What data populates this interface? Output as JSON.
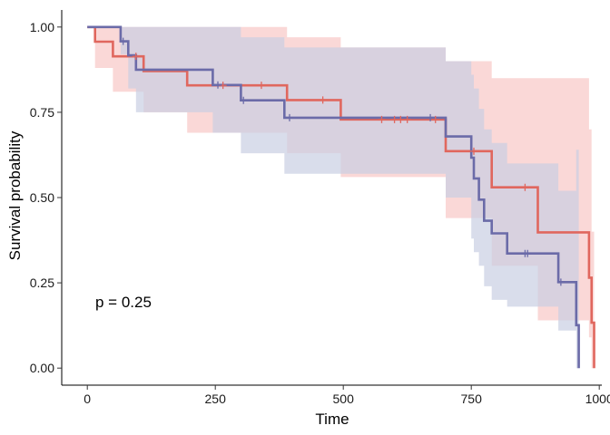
{
  "chart_data": {
    "type": "line",
    "subtype": "kaplan-meier-survival",
    "xlabel": "Time",
    "ylabel": "Survival probability",
    "xlim": [
      -50,
      1005
    ],
    "ylim": [
      -0.05,
      1.05
    ],
    "x_ticks": [
      0,
      250,
      500,
      750,
      1000
    ],
    "y_ticks": [
      0.0,
      0.25,
      0.5,
      0.75,
      1.0
    ],
    "x_tick_labels": [
      "0",
      "250",
      "500",
      "750",
      "1000"
    ],
    "y_tick_labels": [
      "0.00",
      "0.25",
      "0.50",
      "0.75",
      "1.00"
    ],
    "annotation": "p = 0.25",
    "grid": false,
    "legend": "none",
    "series": [
      {
        "color": "#E0675E",
        "ci_color": "#F8C8C6",
        "steps": [
          [
            0,
            1.0
          ],
          [
            15,
            0.957
          ],
          [
            50,
            0.914
          ],
          [
            90,
            0.914
          ],
          [
            110,
            0.871
          ],
          [
            195,
            0.829
          ],
          [
            390,
            0.786
          ],
          [
            495,
            0.729
          ],
          [
            700,
            0.636
          ],
          [
            790,
            0.53
          ],
          [
            880,
            0.398
          ],
          [
            980,
            0.265
          ],
          [
            985,
            0.133
          ],
          [
            990,
            0.0
          ]
        ],
        "ci_upper": [
          [
            0,
            1.0
          ],
          [
            15,
            1.0
          ],
          [
            50,
            1.0
          ],
          [
            90,
            1.0
          ],
          [
            110,
            1.0
          ],
          [
            195,
            1.0
          ],
          [
            390,
            0.97
          ],
          [
            495,
            0.94
          ],
          [
            700,
            0.9
          ],
          [
            790,
            0.85
          ],
          [
            880,
            0.85
          ],
          [
            980,
            0.7
          ],
          [
            985,
            0.4
          ],
          [
            990,
            0.4
          ]
        ],
        "ci_lower": [
          [
            0,
            1.0
          ],
          [
            15,
            0.88
          ],
          [
            50,
            0.81
          ],
          [
            90,
            0.81
          ],
          [
            110,
            0.75
          ],
          [
            195,
            0.69
          ],
          [
            390,
            0.63
          ],
          [
            495,
            0.56
          ],
          [
            700,
            0.44
          ],
          [
            790,
            0.3
          ],
          [
            880,
            0.14
          ],
          [
            980,
            0.09
          ],
          [
            985,
            0.0
          ],
          [
            990,
            0.0
          ]
        ],
        "censored": [
          [
            95,
            0.914
          ],
          [
            265,
            0.829
          ],
          [
            340,
            0.829
          ],
          [
            460,
            0.786
          ],
          [
            575,
            0.729
          ],
          [
            600,
            0.729
          ],
          [
            612,
            0.729
          ],
          [
            625,
            0.729
          ],
          [
            680,
            0.729
          ],
          [
            755,
            0.636
          ],
          [
            855,
            0.53
          ]
        ]
      },
      {
        "color": "#6B6BA8",
        "ci_color": "#C9CEE3",
        "steps": [
          [
            0,
            1.0
          ],
          [
            65,
            0.958
          ],
          [
            80,
            0.917
          ],
          [
            95,
            0.875
          ],
          [
            245,
            0.83
          ],
          [
            300,
            0.785
          ],
          [
            385,
            0.734
          ],
          [
            700,
            0.679
          ],
          [
            750,
            0.617
          ],
          [
            755,
            0.556
          ],
          [
            765,
            0.494
          ],
          [
            775,
            0.432
          ],
          [
            790,
            0.395
          ],
          [
            820,
            0.336
          ],
          [
            920,
            0.252
          ],
          [
            955,
            0.126
          ],
          [
            960,
            0.0
          ]
        ],
        "ci_upper": [
          [
            0,
            1.0
          ],
          [
            65,
            1.0
          ],
          [
            80,
            1.0
          ],
          [
            95,
            1.0
          ],
          [
            245,
            1.0
          ],
          [
            300,
            0.97
          ],
          [
            385,
            0.94
          ],
          [
            700,
            0.9
          ],
          [
            750,
            0.86
          ],
          [
            755,
            0.82
          ],
          [
            765,
            0.76
          ],
          [
            775,
            0.7
          ],
          [
            790,
            0.66
          ],
          [
            820,
            0.6
          ],
          [
            920,
            0.52
          ],
          [
            955,
            0.64
          ],
          [
            960,
            0.64
          ]
        ],
        "ci_lower": [
          [
            0,
            1.0
          ],
          [
            65,
            0.92
          ],
          [
            80,
            0.82
          ],
          [
            95,
            0.75
          ],
          [
            245,
            0.69
          ],
          [
            300,
            0.63
          ],
          [
            385,
            0.57
          ],
          [
            700,
            0.5
          ],
          [
            750,
            0.38
          ],
          [
            755,
            0.34
          ],
          [
            765,
            0.3
          ],
          [
            775,
            0.24
          ],
          [
            790,
            0.2
          ],
          [
            820,
            0.18
          ],
          [
            920,
            0.11
          ],
          [
            955,
            0.0
          ],
          [
            960,
            0.0
          ]
        ],
        "censored": [
          [
            70,
            0.958
          ],
          [
            255,
            0.83
          ],
          [
            305,
            0.785
          ],
          [
            395,
            0.734
          ],
          [
            670,
            0.734
          ],
          [
            855,
            0.336
          ],
          [
            860,
            0.336
          ],
          [
            925,
            0.252
          ]
        ]
      }
    ]
  }
}
